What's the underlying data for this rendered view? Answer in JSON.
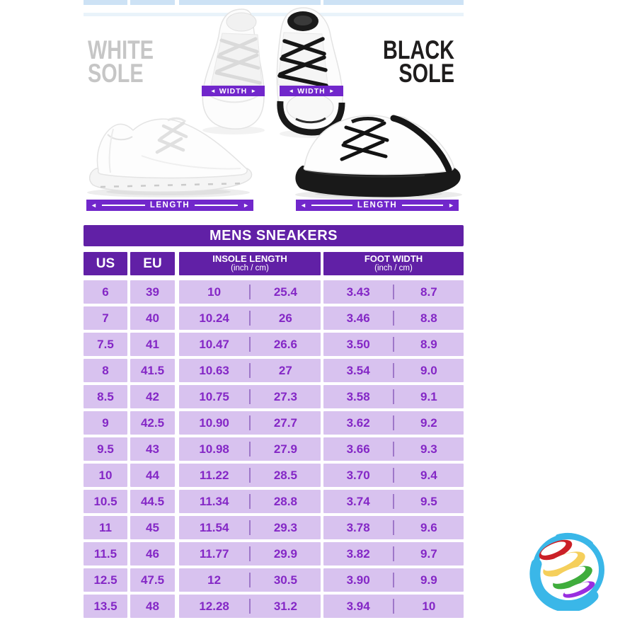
{
  "colors": {
    "purple_dark": "#6120a6",
    "purple_bar": "#7127cb",
    "row_bg": "#d8c2ef",
    "row_text": "#8427c6",
    "cell_divider": "#9e77c9",
    "blue_strip": "#cde2f5",
    "blue_strip_light": "#e9f3fa",
    "gray_title": "#c6c6c6",
    "black_title": "#1f1d1d"
  },
  "hero": {
    "white_sole_line1": "WHITE",
    "white_sole_line2": "SOLE",
    "black_sole_line1": "BLACK",
    "black_sole_line2": "SOLE",
    "width_label": "WIDTH",
    "length_label": "LENGTH",
    "arrow_left": "◄",
    "arrow_right": "►"
  },
  "table": {
    "title": "MENS SNEAKERS",
    "headers": {
      "us": "US",
      "eu": "EU",
      "insole_line1": "INSOLE LENGTH",
      "insole_line2": "(inch / cm)",
      "foot_line1": "FOOT WIDTH",
      "foot_line2": "(inch / cm)"
    },
    "rows": [
      {
        "us": "6",
        "eu": "39",
        "insole_in": "10",
        "insole_cm": "25.4",
        "foot_in": "3.43",
        "foot_cm": "8.7"
      },
      {
        "us": "7",
        "eu": "40",
        "insole_in": "10.24",
        "insole_cm": "26",
        "foot_in": "3.46",
        "foot_cm": "8.8"
      },
      {
        "us": "7.5",
        "eu": "41",
        "insole_in": "10.47",
        "insole_cm": "26.6",
        "foot_in": "3.50",
        "foot_cm": "8.9"
      },
      {
        "us": "8",
        "eu": "41.5",
        "insole_in": "10.63",
        "insole_cm": "27",
        "foot_in": "3.54",
        "foot_cm": "9.0"
      },
      {
        "us": "8.5",
        "eu": "42",
        "insole_in": "10.75",
        "insole_cm": "27.3",
        "foot_in": "3.58",
        "foot_cm": "9.1"
      },
      {
        "us": "9",
        "eu": "42.5",
        "insole_in": "10.90",
        "insole_cm": "27.7",
        "foot_in": "3.62",
        "foot_cm": "9.2"
      },
      {
        "us": "9.5",
        "eu": "43",
        "insole_in": "10.98",
        "insole_cm": "27.9",
        "foot_in": "3.66",
        "foot_cm": "9.3"
      },
      {
        "us": "10",
        "eu": "44",
        "insole_in": "11.22",
        "insole_cm": "28.5",
        "foot_in": "3.70",
        "foot_cm": "9.4"
      },
      {
        "us": "10.5",
        "eu": "44.5",
        "insole_in": "11.34",
        "insole_cm": "28.8",
        "foot_in": "3.74",
        "foot_cm": "9.5"
      },
      {
        "us": "11",
        "eu": "45",
        "insole_in": "11.54",
        "insole_cm": "29.3",
        "foot_in": "3.78",
        "foot_cm": "9.6"
      },
      {
        "us": "11.5",
        "eu": "46",
        "insole_in": "11.77",
        "insole_cm": "29.9",
        "foot_in": "3.82",
        "foot_cm": "9.7"
      },
      {
        "us": "12.5",
        "eu": "47.5",
        "insole_in": "12",
        "insole_cm": "30.5",
        "foot_in": "3.90",
        "foot_cm": "9.9"
      },
      {
        "us": "13.5",
        "eu": "48",
        "insole_in": "12.28",
        "insole_cm": "31.2",
        "foot_in": "3.94",
        "foot_cm": "10"
      }
    ]
  },
  "logo": {
    "name": "colorful-swirl-globe-logo",
    "ring_color": "#3ab7e8",
    "band_colors": [
      "#cb2027",
      "#f5cf5b",
      "#3fad3c",
      "#992ee0"
    ]
  }
}
